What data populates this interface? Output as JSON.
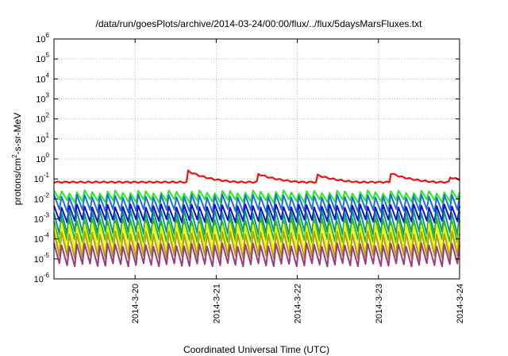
{
  "chart_data": {
    "type": "line",
    "title": "/data/run/goesPlots/archive/2014-03-24/00:00/flux/../flux/5daysMarsFluxes.txt",
    "xlabel": "Coordinated Universal Time (UTC)",
    "ylabel_parts": [
      "protons/cm",
      "2",
      "-s-sr-MeV"
    ],
    "yscale": "log",
    "ylim_exp": [
      -6,
      6
    ],
    "y_ticks": [
      {
        "base": "10",
        "exp": "-6",
        "value": -6
      },
      {
        "base": "10",
        "exp": "-5",
        "value": -5
      },
      {
        "base": "10",
        "exp": "-4",
        "value": -4
      },
      {
        "base": "10",
        "exp": "-3",
        "value": -3
      },
      {
        "base": "10",
        "exp": "-2",
        "value": -2
      },
      {
        "base": "10",
        "exp": "-1",
        "value": -1
      },
      {
        "base": "10",
        "exp": "0",
        "value": 0
      },
      {
        "base": "10",
        "exp": "1",
        "value": 1
      },
      {
        "base": "10",
        "exp": "2",
        "value": 2
      },
      {
        "base": "10",
        "exp": "3",
        "value": 3
      },
      {
        "base": "10",
        "exp": "4",
        "value": 4
      },
      {
        "base": "10",
        "exp": "5",
        "value": 5
      },
      {
        "base": "10",
        "exp": "6",
        "value": 6
      }
    ],
    "xlim": [
      "2014-03-19 00:00",
      "2014-03-24 00:00"
    ],
    "x_ticks": [
      {
        "label": "2014-3-20",
        "day": 1
      },
      {
        "label": "2014-3-21",
        "day": 2
      },
      {
        "label": "2014-3-22",
        "day": 3
      },
      {
        "label": "2014-3-23",
        "day": 4
      },
      {
        "label": "2014-3-24",
        "day": 5
      }
    ],
    "grid": true,
    "series": [
      {
        "color": "#ee1111",
        "width": 2.2,
        "log_top": -1.2,
        "log_bottom": -1.3,
        "events": [
          [
            1.64,
            0.68
          ],
          [
            2.51,
            0.52
          ],
          [
            3.25,
            0.45
          ],
          [
            4.15,
            0.55
          ],
          [
            4.87,
            0.35
          ]
        ]
      },
      {
        "color": "#22ee22",
        "width": 2,
        "log_top": -1.65,
        "log_bottom": -2.1
      },
      {
        "color": "#1e6ee0",
        "width": 2,
        "log_top": -1.85,
        "log_bottom": -2.6
      },
      {
        "color": "#1111cc",
        "width": 2,
        "log_top": -2.35,
        "log_bottom": -3.1
      },
      {
        "color": "#0e9090",
        "width": 2,
        "log_top": -2.65,
        "log_bottom": -3.7
      },
      {
        "color": "#22bb22",
        "width": 2,
        "log_top": -3.05,
        "log_bottom": -4.1
      },
      {
        "color": "#f4f400",
        "width": 2,
        "log_top": -3.3,
        "log_bottom": -4.6
      },
      {
        "color": "#b0a010",
        "width": 2,
        "log_top": -3.7,
        "log_bottom": -4.9
      },
      {
        "color": "#9b3b80",
        "width": 2,
        "log_top": -4.3,
        "log_bottom": -5.3
      }
    ]
  }
}
